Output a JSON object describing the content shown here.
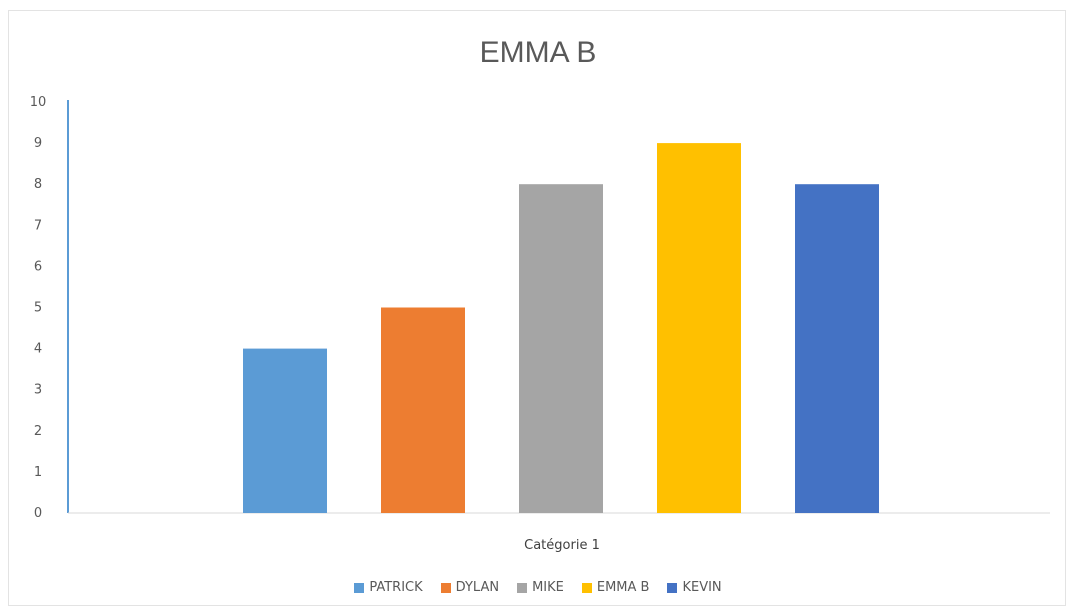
{
  "chart_data": {
    "type": "bar",
    "title": "EMMA B",
    "categories": [
      "Catégorie 1"
    ],
    "series": [
      {
        "name": "PATRICK",
        "values": [
          4
        ],
        "color": "#5b9bd5"
      },
      {
        "name": "DYLAN",
        "values": [
          5
        ],
        "color": "#ed7d31"
      },
      {
        "name": "MIKE",
        "values": [
          8
        ],
        "color": "#a5a5a5"
      },
      {
        "name": "EMMA B",
        "values": [
          9
        ],
        "color": "#ffc000"
      },
      {
        "name": "KEVIN",
        "values": [
          8
        ],
        "color": "#4472c4"
      }
    ],
    "xlabel": "",
    "ylabel": "",
    "ylim": [
      0,
      10
    ],
    "yticks": [
      "0",
      "1",
      "2",
      "3",
      "4",
      "5",
      "6",
      "7",
      "8",
      "9",
      "10"
    ],
    "grid": false,
    "legend": "bottom"
  }
}
